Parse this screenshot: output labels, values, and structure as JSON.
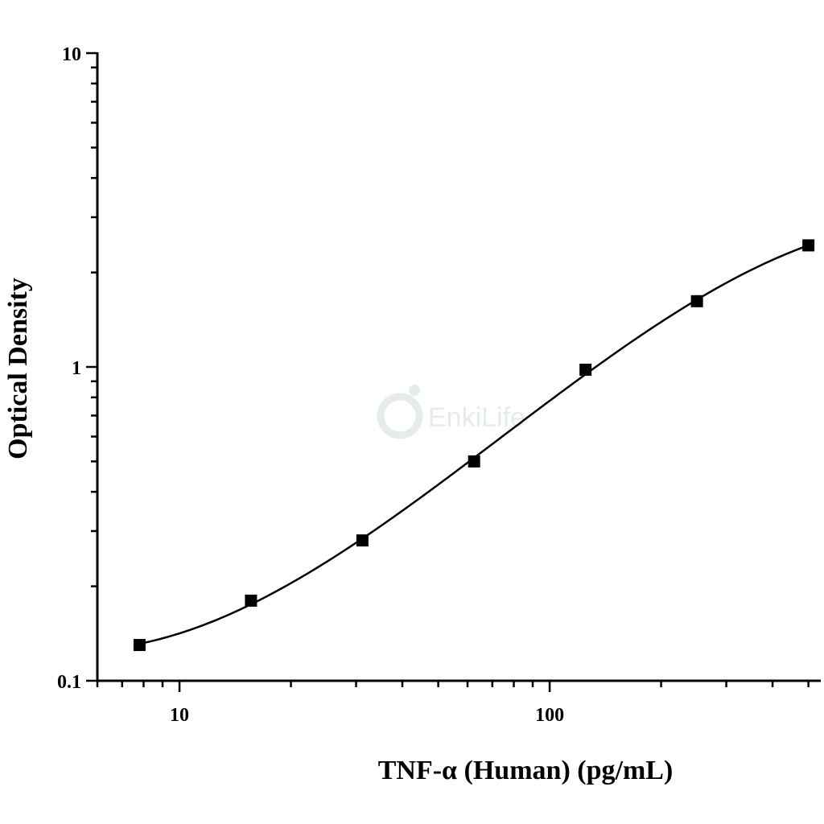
{
  "chart_data": {
    "type": "scatter",
    "title": "",
    "xlabel": "TNF-α (Human) (pg/mL)",
    "ylabel": "Optical Density",
    "xscale": "log",
    "yscale": "log",
    "xlim": [
      6,
      540
    ],
    "ylim": [
      0.1,
      10
    ],
    "x_ticks": [
      10,
      100
    ],
    "x_tick_labels": [
      "10",
      "100"
    ],
    "y_ticks": [
      0.1,
      1,
      10
    ],
    "y_tick_labels": [
      "0.1",
      "1",
      "10"
    ],
    "grid": false,
    "legend": "none",
    "marker": "square",
    "fit": "four-parameter logistic curve",
    "series": [
      {
        "x": [
          7.8,
          15.6,
          31.2,
          62.5,
          125,
          250,
          500
        ],
        "y": [
          0.13,
          0.18,
          0.28,
          0.5,
          0.98,
          1.62,
          2.44
        ],
        "color": "#000000"
      }
    ]
  },
  "watermark": {
    "text": "EnkiLife",
    "color": "#e6ece9"
  }
}
